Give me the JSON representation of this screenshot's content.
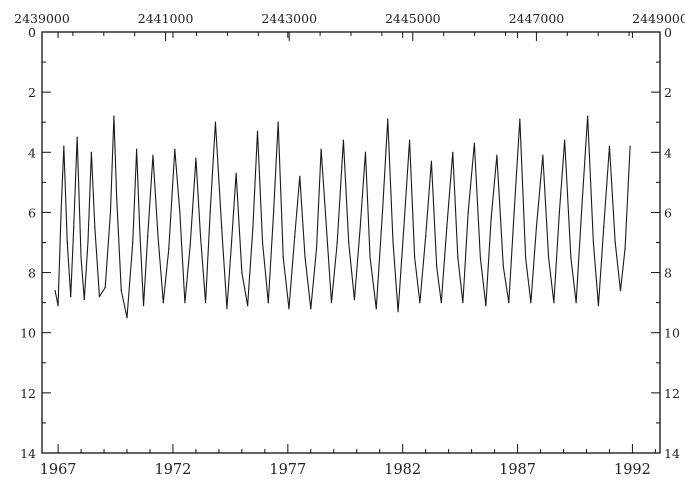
{
  "chart_data": {
    "type": "line",
    "title": "",
    "xlabel": "",
    "ylabel": "",
    "x_bottom": {
      "label": "",
      "range": [
        1966.3,
        1993.2
      ],
      "ticks": [
        1967,
        1972,
        1977,
        1982,
        1987,
        1992
      ],
      "tick_labels": [
        "1967",
        "1972",
        "1977",
        "1982",
        "1987",
        "1992"
      ]
    },
    "x_top": {
      "label": "",
      "range": [
        2439000,
        2449000
      ],
      "ticks": [
        2439000,
        2441000,
        2443000,
        2445000,
        2447000,
        2449000
      ],
      "tick_labels": [
        "2439000",
        "2441000",
        "2443000",
        "2445000",
        "2447000",
        "2449000"
      ]
    },
    "y_axis": {
      "label": "",
      "range": [
        0,
        14
      ],
      "reversed": true,
      "ticks": [
        0,
        2,
        4,
        6,
        8,
        10,
        12,
        14
      ],
      "tick_labels": [
        "0",
        "2",
        "4",
        "6",
        "8",
        "10",
        "12",
        "14"
      ]
    },
    "grid": false,
    "series": [
      {
        "x": [
          1966.87,
          1967.0,
          1967.13,
          1967.25,
          1967.4,
          1967.55,
          1967.68,
          1967.83,
          1968.0,
          1968.14,
          1968.3,
          1968.45,
          1968.6,
          1968.8,
          1969.05,
          1969.28,
          1969.43,
          1969.55,
          1969.75,
          1970.0,
          1970.25,
          1970.42,
          1970.55,
          1970.72,
          1970.9,
          1971.13,
          1971.35,
          1971.58,
          1971.82,
          1972.08,
          1972.3,
          1972.52,
          1972.75,
          1973.0,
          1973.2,
          1973.42,
          1973.62,
          1973.85,
          1974.12,
          1974.35,
          1974.55,
          1974.75,
          1975.0,
          1975.25,
          1975.48,
          1975.68,
          1975.9,
          1976.15,
          1976.38,
          1976.58,
          1976.8,
          1977.05,
          1977.3,
          1977.52,
          1977.75,
          1978.0,
          1978.25,
          1978.45,
          1978.68,
          1978.9,
          1979.15,
          1979.42,
          1979.65,
          1979.9,
          1980.15,
          1980.38,
          1980.58,
          1980.85,
          1981.12,
          1981.35,
          1981.58,
          1981.8,
          1982.05,
          1982.3,
          1982.52,
          1982.75,
          1983.0,
          1983.25,
          1983.48,
          1983.68,
          1983.92,
          1984.18,
          1984.4,
          1984.62,
          1984.85,
          1985.12,
          1985.38,
          1985.62,
          1985.85,
          1986.1,
          1986.38,
          1986.62,
          1986.85,
          1987.1,
          1987.35,
          1987.58,
          1987.82,
          1988.1,
          1988.35,
          1988.58,
          1988.82,
          1989.05,
          1989.32,
          1989.55,
          1989.8,
          1990.05,
          1990.3,
          1990.52,
          1990.75,
          1991.0,
          1991.25,
          1991.48,
          1991.68,
          1991.9
        ],
        "y": [
          8.6,
          9.1,
          6.0,
          3.8,
          7.0,
          8.8,
          6.5,
          3.5,
          7.5,
          8.9,
          7.0,
          4.0,
          6.5,
          8.8,
          8.5,
          6.0,
          2.8,
          5.5,
          8.6,
          9.5,
          7.0,
          3.9,
          6.5,
          9.1,
          6.8,
          4.1,
          6.8,
          9.0,
          7.2,
          3.9,
          6.0,
          9.0,
          7.1,
          4.2,
          6.8,
          9.0,
          6.0,
          3.0,
          6.5,
          9.2,
          7.0,
          4.7,
          8.0,
          9.1,
          6.5,
          3.3,
          7.0,
          9.0,
          6.0,
          3.0,
          7.5,
          9.2,
          6.8,
          4.8,
          7.5,
          9.2,
          7.2,
          3.9,
          6.5,
          9.0,
          7.0,
          3.6,
          7.0,
          8.9,
          6.5,
          4.0,
          7.5,
          9.2,
          6.0,
          2.9,
          7.0,
          9.3,
          6.5,
          3.6,
          7.5,
          9.0,
          6.8,
          4.3,
          7.8,
          9.0,
          6.5,
          4.0,
          7.5,
          9.0,
          6.0,
          3.7,
          7.5,
          9.1,
          6.2,
          4.1,
          7.8,
          9.0,
          6.0,
          2.9,
          7.5,
          9.0,
          6.5,
          4.1,
          7.5,
          9.0,
          6.0,
          3.6,
          7.5,
          9.0,
          5.8,
          2.8,
          7.0,
          9.1,
          6.5,
          3.8,
          7.0,
          8.6,
          7.2,
          3.8
        ]
      }
    ]
  }
}
